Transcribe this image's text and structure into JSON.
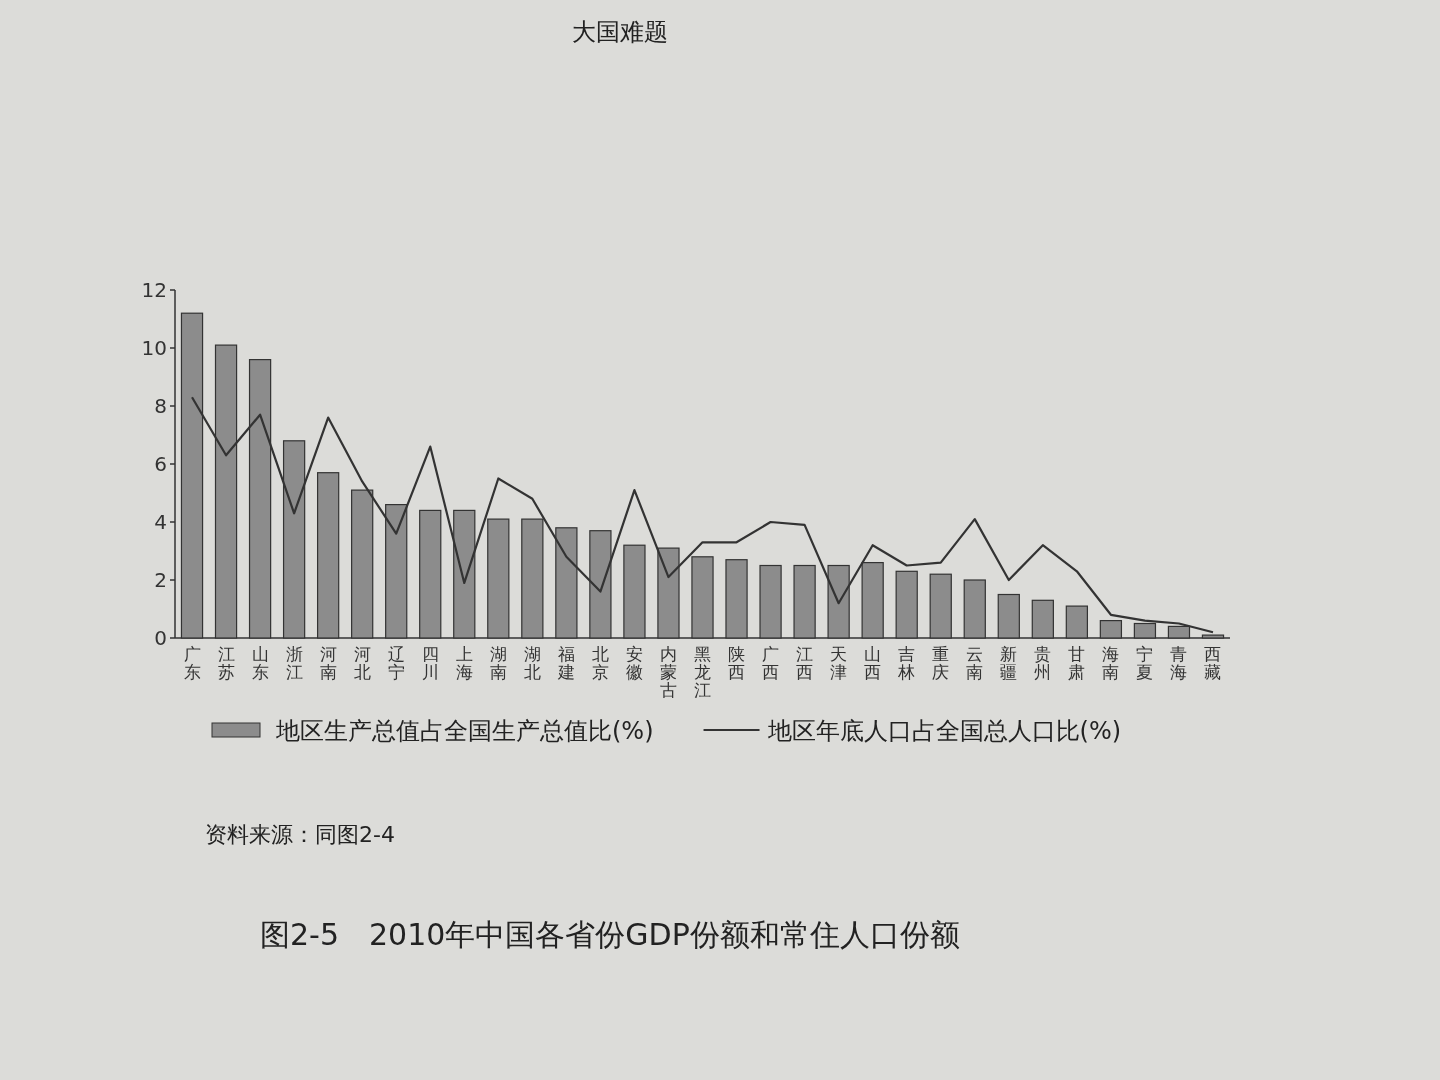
{
  "chart_data": {
    "type": "bar",
    "title": "图2-5　2010年中国各省份GDP份额和常住人口份额",
    "annotations": [
      "大国难题",
      "资料来源：同图2-4"
    ],
    "categories": [
      "广东",
      "江苏",
      "山东",
      "浙江",
      "河南",
      "河北",
      "辽宁",
      "四川",
      "上海",
      "湖南",
      "湖北",
      "福建",
      "北京",
      "安徽",
      "内蒙古",
      "黑龙江",
      "陕西",
      "广西",
      "江西",
      "天津",
      "山西",
      "吉林",
      "重庆",
      "云南",
      "新疆",
      "贵州",
      "甘肃",
      "海南",
      "宁夏",
      "青海",
      "西藏"
    ],
    "series": [
      {
        "name": "地区生产总值占全国生产总值比(%)",
        "color": "#8c8c8c",
        "values": [
          11.2,
          10.1,
          9.6,
          6.8,
          5.7,
          5.1,
          4.6,
          4.4,
          4.4,
          4.1,
          4.1,
          3.8,
          3.7,
          3.2,
          3.1,
          2.8,
          2.7,
          2.5,
          2.5,
          2.5,
          2.6,
          2.3,
          2.2,
          2.0,
          1.5,
          1.3,
          1.1,
          0.6,
          0.5,
          0.4,
          0.1
        ]
      },
      {
        "name": "地区年底人口占全国总人口比(%)",
        "type": "line",
        "color": "#333333",
        "values": [
          8.3,
          6.3,
          7.7,
          4.3,
          7.6,
          5.4,
          3.6,
          6.6,
          1.9,
          5.5,
          4.8,
          2.8,
          1.6,
          5.1,
          2.1,
          3.3,
          3.3,
          4.0,
          3.9,
          1.2,
          3.2,
          2.5,
          2.6,
          4.1,
          2.0,
          3.2,
          2.3,
          0.8,
          0.6,
          0.5,
          0.2
        ]
      }
    ],
    "ylim": [
      0,
      12
    ],
    "yticks": [
      0,
      2,
      4,
      6,
      8,
      10,
      12
    ],
    "legend": "bottom"
  }
}
